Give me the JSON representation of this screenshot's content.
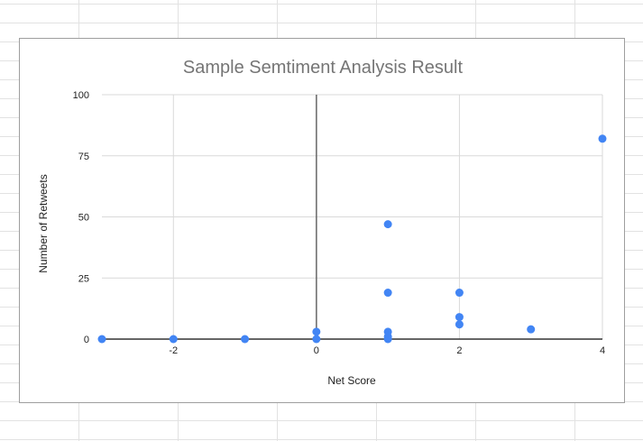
{
  "chart_data": {
    "type": "scatter",
    "title": "Sample Semtiment Analysis Result",
    "xlabel": "Net Score",
    "ylabel": "Number of Retweets",
    "xlim": [
      -3,
      4
    ],
    "ylim": [
      0,
      100
    ],
    "x_ticks": [
      -2,
      0,
      2,
      4
    ],
    "y_ticks": [
      0,
      25,
      50,
      75,
      100
    ],
    "grid": true,
    "legend": "none",
    "point_color": "#4285f4",
    "series": [
      {
        "points": [
          {
            "x": -3,
            "y": 0
          },
          {
            "x": -2,
            "y": 0
          },
          {
            "x": -1,
            "y": 0
          },
          {
            "x": 0,
            "y": 3
          },
          {
            "x": 0,
            "y": 0
          },
          {
            "x": 1,
            "y": 47
          },
          {
            "x": 1,
            "y": 19
          },
          {
            "x": 1,
            "y": 3
          },
          {
            "x": 1,
            "y": 1
          },
          {
            "x": 1,
            "y": 0
          },
          {
            "x": 2,
            "y": 19
          },
          {
            "x": 2,
            "y": 9
          },
          {
            "x": 2,
            "y": 6
          },
          {
            "x": 3,
            "y": 4
          },
          {
            "x": 4,
            "y": 82
          }
        ]
      }
    ]
  }
}
